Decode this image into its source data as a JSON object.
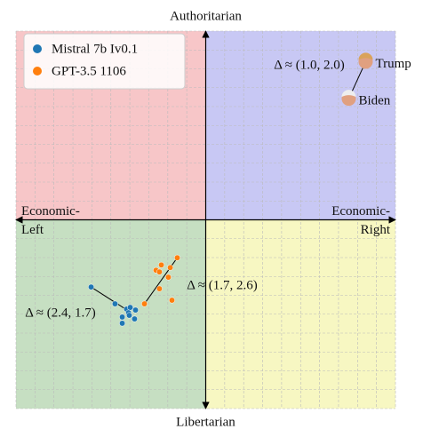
{
  "chart_data": {
    "type": "scatter",
    "axis_labels": {
      "top": "Authoritarian",
      "bottom": "Libertarian",
      "left": [
        "Economic-",
        "Left"
      ],
      "right": [
        "Economic-",
        "Right"
      ]
    },
    "xlim": [
      -10,
      10
    ],
    "ylim": [
      -10,
      10
    ],
    "xticks": [
      -10,
      -9,
      -8,
      -7,
      -6,
      -5,
      -4,
      -3,
      -2,
      -1,
      0,
      1,
      2,
      3,
      4,
      5,
      6,
      7,
      8,
      9,
      10
    ],
    "yticks": [
      -10,
      -9,
      -8,
      -7,
      -6,
      -5,
      -4,
      -3,
      -2,
      -1,
      0,
      1,
      2,
      3,
      4,
      5,
      6,
      7,
      8,
      9,
      10
    ],
    "grid": true,
    "tick_labels": false,
    "quadrant_colors": {
      "top_left": "#f7c6c8",
      "top_right": "#c8c8f4",
      "bottom_left": "#c6dfc2",
      "bottom_right": "#f7f7c2"
    },
    "legend": "upper left",
    "series": [
      {
        "name": "Mistral 7b Iv0.1",
        "color": "#1f77b4",
        "x": [
          -6.04,
          -4.78,
          -4.17,
          -3.98,
          -3.7,
          -4.07,
          -4.4,
          -4.4,
          -3.75,
          -4.03
        ],
        "y": [
          -3.56,
          -4.45,
          -4.73,
          -4.64,
          -4.78,
          -4.92,
          -5.15,
          -5.48,
          -5.25,
          -5.06
        ],
        "trend": {
          "x": [
            -6.04,
            -3.93
          ],
          "y": [
            -3.56,
            -4.92
          ]
        }
      },
      {
        "name": "GPT-3.5 1106",
        "color": "#ff7f0e",
        "x": [
          -1.5,
          -2.34,
          -2.62,
          -2.44,
          -1.87,
          -1.97,
          -2.44,
          -1.78,
          -3.23
        ],
        "y": [
          -2.01,
          -2.39,
          -2.67,
          -2.76,
          -2.53,
          -3.04,
          -3.65,
          -4.26,
          -4.45
        ],
        "trend": {
          "x": [
            -3.23,
            -1.5
          ],
          "y": [
            -4.45,
            -2.01
          ]
        }
      }
    ],
    "leaders": {
      "labels": [
        "Trump",
        "Biden"
      ],
      "x": [
        8.43,
        7.54
      ],
      "y": [
        8.38,
        6.42
      ]
    },
    "annotations": [
      "Δ ≈ (1.0, 2.0)",
      "Δ ≈ (2.4, 1.7)",
      "Δ ≈ (1.7, 2.6)"
    ]
  }
}
